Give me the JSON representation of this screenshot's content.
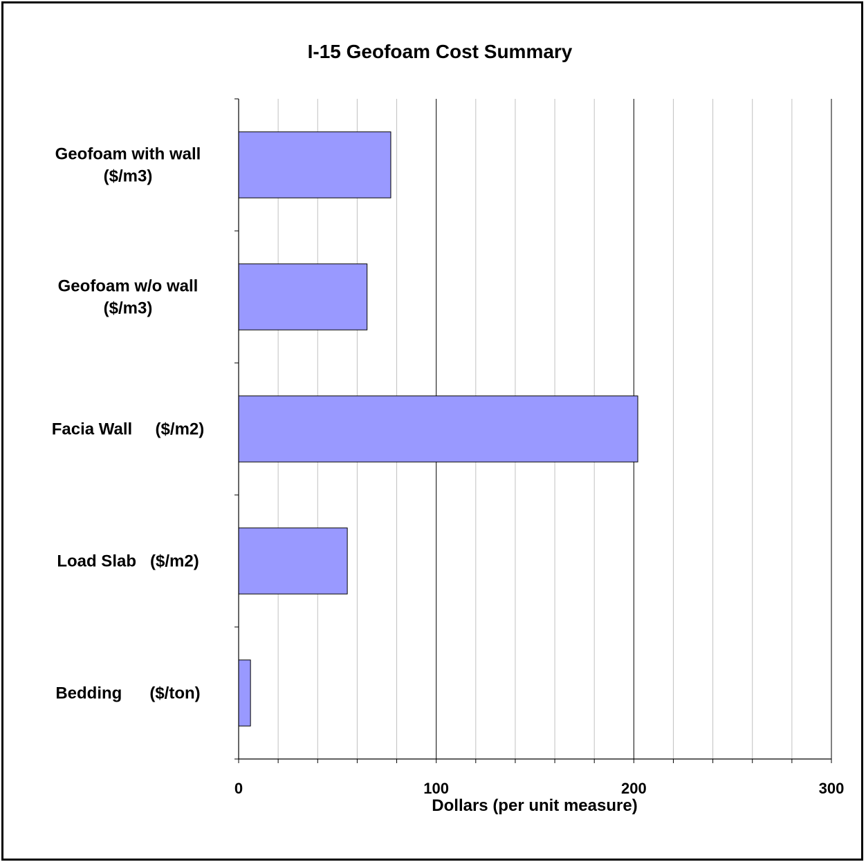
{
  "chart_data": {
    "type": "bar",
    "orientation": "horizontal",
    "title": "I-15 Geofoam Cost Summary",
    "xlabel": "Dollars (per unit measure)",
    "ylabel": "",
    "categories": [
      [
        "Geofoam with wall",
        "($/m3)"
      ],
      [
        "Geofoam w/o wall",
        "($/m3)"
      ],
      [
        "Facia Wall     ($/m2)"
      ],
      [
        "Load Slab   ($/m2)"
      ],
      [
        "Bedding      ($/ton)"
      ]
    ],
    "values": [
      77,
      65,
      202,
      55,
      6
    ],
    "xlim": [
      0,
      300
    ],
    "xticks": [
      "0",
      "100",
      "200",
      "300"
    ],
    "major_step": 100,
    "minor_step": 20,
    "grid": true,
    "legend": "none",
    "colors": {
      "bar": "#9999ff",
      "bar_edge": "#000000",
      "major_grid": "#000000",
      "minor_grid": "#c0c0c0"
    }
  }
}
